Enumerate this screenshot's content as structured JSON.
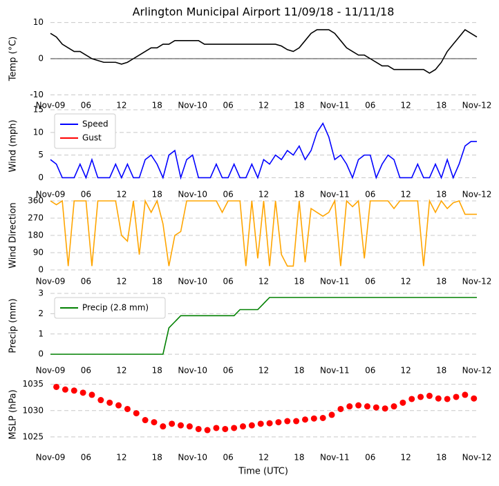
{
  "chart_data": [
    {
      "type": "line",
      "title": "Arlington Municipal Airport 11/09/18 - 11/11/18",
      "ylabel": "Temp (°C)",
      "color": "#000000",
      "hline": 0,
      "x": [
        0,
        1,
        2,
        3,
        4,
        5,
        6,
        7,
        8,
        9,
        10,
        11,
        12,
        13,
        14,
        15,
        16,
        17,
        18,
        19,
        20,
        21,
        22,
        23,
        24,
        25,
        26,
        27,
        28,
        29,
        30,
        31,
        32,
        33,
        34,
        35,
        36,
        37,
        38,
        39,
        40,
        41,
        42,
        43,
        44,
        45,
        46,
        47,
        48,
        49,
        50,
        51,
        52,
        53,
        54,
        55,
        56,
        57,
        58,
        59,
        60,
        61,
        62,
        63,
        64,
        65,
        66,
        67,
        68,
        69,
        70,
        71,
        72
      ],
      "values": [
        7,
        6,
        4,
        3,
        2,
        2,
        1,
        0,
        -0.5,
        -1,
        -1,
        -1,
        -1.5,
        -1,
        0,
        1,
        2,
        3,
        3,
        4,
        4,
        5,
        5,
        5,
        5,
        5,
        4,
        4,
        4,
        4,
        4,
        4,
        4,
        4,
        4,
        4,
        4,
        4,
        4,
        3.5,
        2.5,
        2,
        3,
        5,
        7,
        8,
        8,
        8,
        7,
        5,
        3,
        2,
        1,
        1,
        0,
        -1,
        -2,
        -2,
        -3,
        -3,
        -3,
        -3,
        -3,
        -3,
        -4,
        -3,
        -1,
        2,
        4,
        6,
        8,
        7,
        6
      ],
      "xlim": [
        0,
        72
      ],
      "ylim": [
        -10.5,
        10.5
      ],
      "yticks": [
        -10,
        0,
        10
      ],
      "grid": true,
      "xticks": [
        {
          "value": 0,
          "label": "Nov-09"
        },
        {
          "value": 6,
          "label": "06"
        },
        {
          "value": 12,
          "label": "12"
        },
        {
          "value": 18,
          "label": "18"
        },
        {
          "value": 24,
          "label": "Nov-10"
        },
        {
          "value": 30,
          "label": "06"
        },
        {
          "value": 36,
          "label": "12"
        },
        {
          "value": 42,
          "label": "18"
        },
        {
          "value": 48,
          "label": "Nov-11"
        },
        {
          "value": 54,
          "label": "06"
        },
        {
          "value": 60,
          "label": "12"
        },
        {
          "value": 66,
          "label": "18"
        },
        {
          "value": 72,
          "label": "Nov-12"
        }
      ]
    },
    {
      "type": "line",
      "ylabel": "Wind (mph)",
      "legend": "upper left",
      "x": [
        0,
        1,
        2,
        3,
        4,
        5,
        6,
        7,
        8,
        9,
        10,
        11,
        12,
        13,
        14,
        15,
        16,
        17,
        18,
        19,
        20,
        21,
        22,
        23,
        24,
        25,
        26,
        27,
        28,
        29,
        30,
        31,
        32,
        33,
        34,
        35,
        36,
        37,
        38,
        39,
        40,
        41,
        42,
        43,
        44,
        45,
        46,
        47,
        48,
        49,
        50,
        51,
        52,
        53,
        54,
        55,
        56,
        57,
        58,
        59,
        60,
        61,
        62,
        63,
        64,
        65,
        66,
        67,
        68,
        69,
        70,
        71,
        72
      ],
      "series": [
        {
          "name": "Speed",
          "color": "#0000ff",
          "values": [
            4,
            3,
            0,
            0,
            0,
            3,
            0,
            4,
            0,
            0,
            0,
            3,
            0,
            3,
            0,
            0,
            4,
            5,
            3,
            0,
            5,
            6,
            0,
            4,
            5,
            0,
            0,
            0,
            3,
            0,
            0,
            3,
            0,
            0,
            3,
            0,
            4,
            3,
            5,
            4,
            6,
            5,
            7,
            4,
            6,
            10,
            12,
            9,
            4,
            5,
            3,
            0,
            4,
            5,
            5,
            0,
            3,
            5,
            4,
            0,
            0,
            0,
            3,
            0,
            0,
            3,
            0,
            4,
            0,
            3,
            7,
            8,
            8
          ]
        },
        {
          "name": "Gust",
          "color": "#ff0000",
          "values": [
            null,
            null,
            null,
            null,
            null,
            null,
            null,
            null,
            null,
            null,
            null,
            null,
            null,
            null,
            null,
            null,
            null,
            null,
            null,
            null,
            null,
            null,
            null,
            null,
            null,
            null,
            null,
            null,
            null,
            null,
            null,
            null,
            null,
            null,
            null,
            null,
            null,
            null,
            null,
            null,
            null,
            null,
            null,
            null,
            null,
            null,
            null,
            null,
            null,
            null,
            null,
            null,
            null,
            null,
            null,
            null,
            null,
            null,
            null,
            null,
            null,
            null,
            null,
            null,
            null,
            null,
            null,
            null,
            null,
            null,
            null,
            null,
            null
          ]
        }
      ],
      "xlim": [
        0,
        72
      ],
      "ylim": [
        -1,
        15
      ],
      "yticks": [
        0,
        5,
        10,
        15
      ],
      "grid": true,
      "xticks": [
        {
          "value": 0,
          "label": "Nov-09"
        },
        {
          "value": 6,
          "label": "06"
        },
        {
          "value": 12,
          "label": "12"
        },
        {
          "value": 18,
          "label": "18"
        },
        {
          "value": 24,
          "label": "Nov-10"
        },
        {
          "value": 30,
          "label": "06"
        },
        {
          "value": 36,
          "label": "12"
        },
        {
          "value": 42,
          "label": "18"
        },
        {
          "value": 48,
          "label": "Nov-11"
        },
        {
          "value": 54,
          "label": "06"
        },
        {
          "value": 60,
          "label": "12"
        },
        {
          "value": 66,
          "label": "18"
        },
        {
          "value": 72,
          "label": "Nov-12"
        }
      ]
    },
    {
      "type": "line",
      "ylabel": "Wind Direction",
      "color": "#ffa500",
      "x": [
        0,
        1,
        2,
        3,
        4,
        5,
        6,
        7,
        8,
        9,
        10,
        11,
        12,
        13,
        14,
        15,
        16,
        17,
        18,
        19,
        20,
        21,
        22,
        23,
        24,
        25,
        26,
        27,
        28,
        29,
        30,
        31,
        32,
        33,
        34,
        35,
        36,
        37,
        38,
        39,
        40,
        41,
        42,
        43,
        44,
        45,
        46,
        47,
        48,
        49,
        50,
        51,
        52,
        53,
        54,
        55,
        56,
        57,
        58,
        59,
        60,
        61,
        62,
        63,
        64,
        65,
        66,
        67,
        68,
        69,
        70,
        71,
        72
      ],
      "values": [
        360,
        340,
        360,
        20,
        360,
        360,
        360,
        20,
        360,
        360,
        360,
        360,
        180,
        150,
        360,
        80,
        360,
        300,
        360,
        240,
        20,
        180,
        200,
        360,
        360,
        360,
        360,
        360,
        360,
        300,
        360,
        360,
        360,
        20,
        360,
        60,
        360,
        20,
        360,
        80,
        20,
        20,
        360,
        40,
        320,
        300,
        280,
        300,
        360,
        20,
        360,
        330,
        360,
        60,
        360,
        360,
        360,
        360,
        320,
        360,
        360,
        360,
        360,
        20,
        360,
        300,
        360,
        320,
        350,
        360,
        290,
        290,
        290
      ],
      "xlim": [
        0,
        72
      ],
      "ylim": [
        0,
        360
      ],
      "yticks": [
        0,
        90,
        180,
        270,
        360
      ],
      "grid": true,
      "xticks": [
        {
          "value": 0,
          "label": "Nov-09"
        },
        {
          "value": 6,
          "label": "06"
        },
        {
          "value": 12,
          "label": "12"
        },
        {
          "value": 18,
          "label": "18"
        },
        {
          "value": 24,
          "label": "Nov-10"
        },
        {
          "value": 30,
          "label": "06"
        },
        {
          "value": 36,
          "label": "12"
        },
        {
          "value": 42,
          "label": "18"
        },
        {
          "value": 48,
          "label": "Nov-11"
        },
        {
          "value": 54,
          "label": "06"
        },
        {
          "value": 60,
          "label": "12"
        },
        {
          "value": 66,
          "label": "18"
        },
        {
          "value": 72,
          "label": "Nov-12"
        }
      ]
    },
    {
      "type": "line",
      "ylabel": "Precip (mm)",
      "legend": "upper left",
      "x": [
        0,
        1,
        2,
        3,
        4,
        5,
        6,
        7,
        8,
        9,
        10,
        11,
        12,
        13,
        14,
        15,
        16,
        17,
        18,
        19,
        20,
        21,
        22,
        23,
        24,
        25,
        26,
        27,
        28,
        29,
        30,
        31,
        32,
        33,
        34,
        35,
        36,
        37,
        38,
        39,
        40,
        41,
        42,
        43,
        44,
        45,
        46,
        47,
        48,
        49,
        50,
        51,
        52,
        53,
        54,
        55,
        56,
        57,
        58,
        59,
        60,
        61,
        62,
        63,
        64,
        65,
        66,
        67,
        68,
        69,
        70,
        71,
        72
      ],
      "series": [
        {
          "name": "Precip (2.8 mm)",
          "color": "#008000",
          "values": [
            0,
            0,
            0,
            0,
            0,
            0,
            0,
            0,
            0,
            0,
            0,
            0,
            0,
            0,
            0,
            0,
            0,
            0,
            0,
            0,
            1.3,
            1.6,
            1.9,
            1.9,
            1.9,
            1.9,
            1.9,
            1.9,
            1.9,
            1.9,
            1.9,
            1.9,
            2.2,
            2.2,
            2.2,
            2.2,
            2.5,
            2.8,
            2.8,
            2.8,
            2.8,
            2.8,
            2.8,
            2.8,
            2.8,
            2.8,
            2.8,
            2.8,
            2.8,
            2.8,
            2.8,
            2.8,
            2.8,
            2.8,
            2.8,
            2.8,
            2.8,
            2.8,
            2.8,
            2.8,
            2.8,
            2.8,
            2.8,
            2.8,
            2.8,
            2.8,
            2.8,
            2.8,
            2.8,
            2.8,
            2.8,
            2.8,
            2.8
          ]
        }
      ],
      "xlim": [
        0,
        72
      ],
      "ylim": [
        -0.2,
        3
      ],
      "yticks": [
        0,
        1,
        2,
        3
      ],
      "grid": true,
      "xticks": [
        {
          "value": 0,
          "label": "Nov-09"
        },
        {
          "value": 6,
          "label": "06"
        },
        {
          "value": 12,
          "label": "12"
        },
        {
          "value": 18,
          "label": "18"
        },
        {
          "value": 24,
          "label": "Nov-10"
        },
        {
          "value": 30,
          "label": "06"
        },
        {
          "value": 36,
          "label": "12"
        },
        {
          "value": 42,
          "label": "18"
        },
        {
          "value": 48,
          "label": "Nov-11"
        },
        {
          "value": 54,
          "label": "06"
        },
        {
          "value": 60,
          "label": "12"
        },
        {
          "value": 66,
          "label": "18"
        },
        {
          "value": 72,
          "label": "Nov-12"
        }
      ]
    },
    {
      "type": "scatter",
      "ylabel": "MSLP (hPa)",
      "xlabel": "Time (UTC)",
      "color": "#ff0000",
      "x": [
        1,
        2.5,
        4,
        5.5,
        7,
        8.5,
        10,
        11.5,
        13,
        14.5,
        16,
        17.5,
        19,
        20.5,
        22,
        23.5,
        25,
        26.5,
        28,
        29.5,
        31,
        32.5,
        34,
        35.5,
        37,
        38.5,
        40,
        41.5,
        43,
        44.5,
        46,
        47.5,
        49,
        50.5,
        52,
        53.5,
        55,
        56.5,
        58,
        59.5,
        61,
        62.5,
        64,
        65.5,
        67,
        68.5,
        70,
        71.5
      ],
      "values": [
        1034.5,
        1034,
        1033.8,
        1033.4,
        1033,
        1032,
        1031.5,
        1031,
        1030.3,
        1029.5,
        1028.2,
        1027.8,
        1027,
        1027.5,
        1027.2,
        1027,
        1026.5,
        1026.3,
        1026.7,
        1026.5,
        1026.7,
        1027,
        1027.2,
        1027.5,
        1027.6,
        1027.8,
        1028,
        1028,
        1028.3,
        1028.5,
        1028.6,
        1029.2,
        1030.3,
        1030.8,
        1031,
        1030.8,
        1030.6,
        1030.4,
        1030.8,
        1031.5,
        1032.2,
        1032.6,
        1032.8,
        1032.3,
        1032.2,
        1032.6,
        1033,
        1032.3
      ],
      "xlim": [
        0,
        72
      ],
      "ylim": [
        1022.5,
        1036
      ],
      "yticks": [
        1025,
        1030,
        1035
      ],
      "grid": true,
      "xticks": [
        {
          "value": 0,
          "label": "Nov-09"
        },
        {
          "value": 6,
          "label": "06"
        },
        {
          "value": 12,
          "label": "12"
        },
        {
          "value": 18,
          "label": "18"
        },
        {
          "value": 24,
          "label": "Nov-10"
        },
        {
          "value": 30,
          "label": "06"
        },
        {
          "value": 36,
          "label": "12"
        },
        {
          "value": 42,
          "label": "18"
        },
        {
          "value": 48,
          "label": "Nov-11"
        },
        {
          "value": 54,
          "label": "06"
        },
        {
          "value": 60,
          "label": "12"
        },
        {
          "value": 66,
          "label": "18"
        },
        {
          "value": 72,
          "label": "Nov-12"
        }
      ]
    }
  ]
}
